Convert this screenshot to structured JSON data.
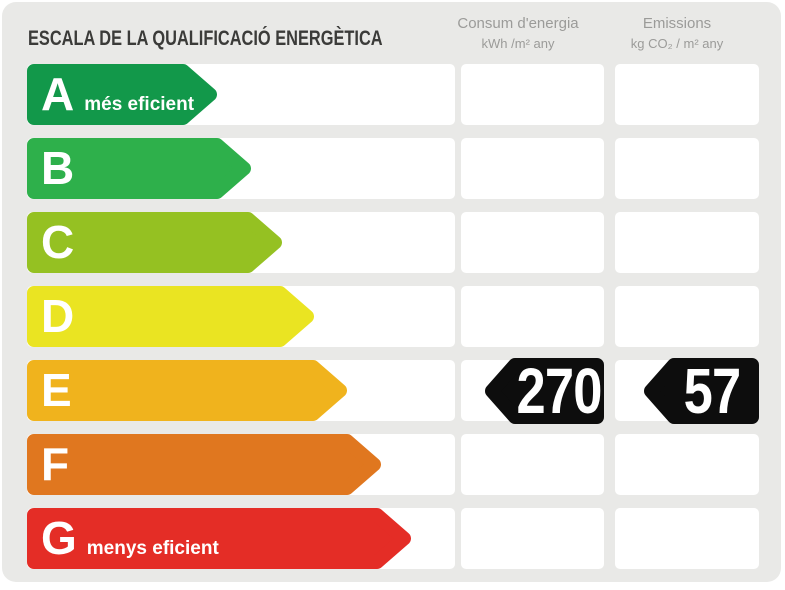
{
  "card": {
    "title": "ESCALA DE LA QUALIFICACIÓ ENERGÈTICA",
    "background_color": "#e9e9e7",
    "title_color": "#3b3b39",
    "header_text_color": "#9b9b99",
    "cell_color": "#ffffff"
  },
  "columns": {
    "consumption": {
      "name": "Consum d'energia",
      "unit": "kWh /m²  any"
    },
    "emissions": {
      "name": "Emissions",
      "unit": "kg CO₂ / m²  any"
    }
  },
  "scale": {
    "badge_color": "#0d0d0d",
    "value_text_color": "#ffffff",
    "rows": [
      {
        "letter": "A",
        "label": "més eficient",
        "color": "#12984a",
        "arrow_width": 193
      },
      {
        "letter": "B",
        "color": "#2eb04b",
        "arrow_width": 227
      },
      {
        "letter": "C",
        "color": "#95c122",
        "arrow_width": 258
      },
      {
        "letter": "D",
        "color": "#eae422",
        "arrow_width": 290
      },
      {
        "letter": "E",
        "color": "#f0b31d",
        "arrow_width": 323,
        "consumption": "270",
        "emissions": "57"
      },
      {
        "letter": "F",
        "color": "#e0771f",
        "arrow_width": 357
      },
      {
        "letter": "G",
        "label": "menys eficient",
        "color": "#e42d26",
        "arrow_width": 387
      }
    ]
  },
  "chart_data": {
    "type": "bar",
    "title": "ESCALA DE LA QUALIFICACIÓ ENERGÈTICA",
    "categories": [
      "A",
      "B",
      "C",
      "D",
      "E",
      "F",
      "G"
    ],
    "bar_colors": [
      "#12984a",
      "#2eb04b",
      "#95c122",
      "#eae422",
      "#f0b31d",
      "#e0771f",
      "#e42d26"
    ],
    "bar_relative_lengths": [
      193,
      227,
      258,
      290,
      323,
      357,
      387
    ],
    "annotations": {
      "A": "més eficient",
      "G": "menys eficient"
    },
    "assigned_class": "E",
    "series": [
      {
        "name": "Consum d'energia",
        "unit": "kWh /m² any",
        "value": 270,
        "class": "E"
      },
      {
        "name": "Emissions",
        "unit": "kg CO₂ / m² any",
        "value": 57,
        "class": "E"
      }
    ],
    "legend_position": "none",
    "grid": false
  }
}
